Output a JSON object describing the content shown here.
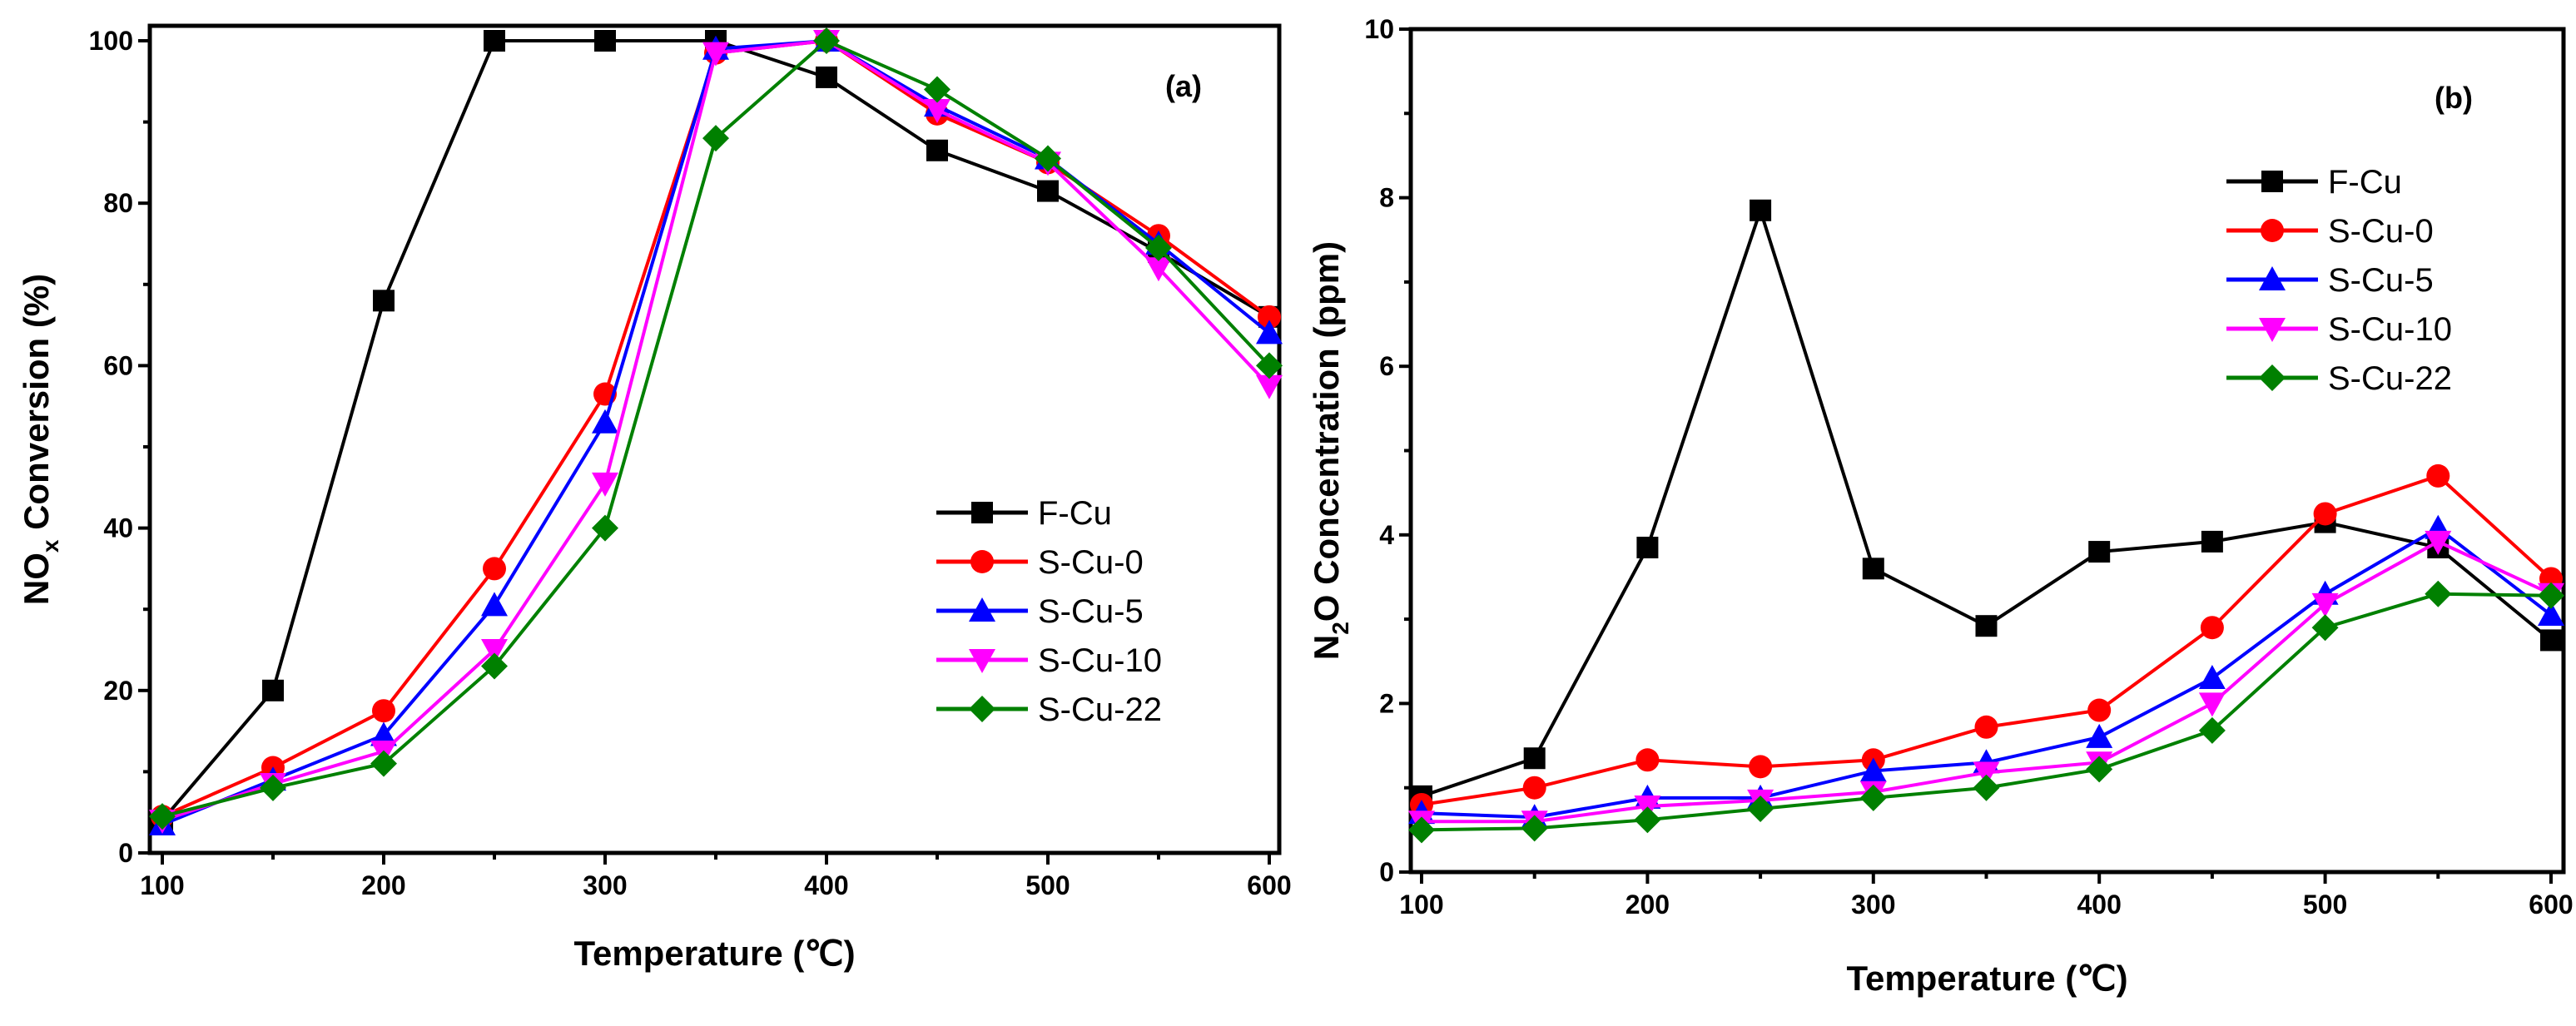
{
  "colors": {
    "F-Cu": "#000000",
    "S-Cu-0": "#ff0000",
    "S-Cu-5": "#0000ff",
    "S-Cu-10": "#ff00ff",
    "S-Cu-22": "#008000"
  },
  "markers": {
    "F-Cu": "square",
    "S-Cu-0": "circle",
    "S-Cu-5": "triangle-up",
    "S-Cu-10": "triangle-down",
    "S-Cu-22": "diamond"
  },
  "chart_data": [
    {
      "type": "line",
      "panel_label": "(a)",
      "xlabel": "Temperature (℃)",
      "ylabel_main": "NO",
      "ylabel_sub": "x",
      "ylabel_rest": " Conversion (%)",
      "xlim": [
        100,
        600
      ],
      "ylim": [
        0,
        100
      ],
      "xticks": [
        100,
        200,
        300,
        400,
        500,
        600
      ],
      "yticks": [
        0,
        20,
        40,
        60,
        80,
        100
      ],
      "legend_position": "center-right",
      "x": [
        100,
        150,
        200,
        250,
        300,
        350,
        400,
        450,
        500,
        550,
        600
      ],
      "series": [
        {
          "name": "F-Cu",
          "values": [
            4,
            20,
            68,
            100,
            100,
            100,
            95.5,
            86.5,
            81.5,
            74,
            66
          ]
        },
        {
          "name": "S-Cu-0",
          "values": [
            4.5,
            10.5,
            17.5,
            35,
            56.5,
            98.5,
            100,
            91,
            85,
            76,
            66
          ]
        },
        {
          "name": "S-Cu-5",
          "values": [
            3.5,
            9,
            14.5,
            30.5,
            53,
            99,
            100,
            92,
            85.5,
            75,
            64
          ]
        },
        {
          "name": "S-Cu-10",
          "values": [
            4,
            8.5,
            12.5,
            25,
            45.5,
            98.5,
            100,
            91.5,
            85,
            72,
            57.5
          ]
        },
        {
          "name": "S-Cu-22",
          "values": [
            4.5,
            8,
            11,
            23,
            40,
            88,
            100,
            94,
            85.5,
            74.5,
            60
          ]
        }
      ]
    },
    {
      "type": "line",
      "panel_label": "(b)",
      "xlabel": "Temperature (℃)",
      "ylabel_main": "N",
      "ylabel_sub": "2",
      "ylabel_rest": "O Concentration (ppm)",
      "xlim": [
        100,
        600
      ],
      "ylim": [
        0,
        10
      ],
      "xticks": [
        100,
        200,
        300,
        400,
        500,
        600
      ],
      "yticks": [
        0,
        2,
        4,
        6,
        8,
        10
      ],
      "legend_position": "top-right",
      "x": [
        100,
        150,
        200,
        250,
        300,
        350,
        400,
        450,
        500,
        550,
        600
      ],
      "series": [
        {
          "name": "F-Cu",
          "values": [
            0.9,
            1.35,
            3.85,
            7.85,
            3.6,
            2.92,
            3.8,
            3.92,
            4.15,
            3.85,
            2.75
          ]
        },
        {
          "name": "S-Cu-0",
          "values": [
            0.8,
            1.0,
            1.33,
            1.25,
            1.33,
            1.72,
            1.92,
            2.9,
            4.25,
            4.7,
            3.48
          ]
        },
        {
          "name": "S-Cu-5",
          "values": [
            0.7,
            0.65,
            0.88,
            0.88,
            1.2,
            1.3,
            1.6,
            2.3,
            3.3,
            4.08,
            3.05
          ]
        },
        {
          "name": "S-Cu-10",
          "values": [
            0.6,
            0.6,
            0.78,
            0.85,
            0.95,
            1.18,
            1.3,
            2.0,
            3.18,
            3.92,
            3.3
          ]
        },
        {
          "name": "S-Cu-22",
          "values": [
            0.5,
            0.52,
            0.62,
            0.75,
            0.88,
            1.0,
            1.22,
            1.68,
            2.9,
            3.3,
            3.28
          ]
        }
      ]
    }
  ]
}
